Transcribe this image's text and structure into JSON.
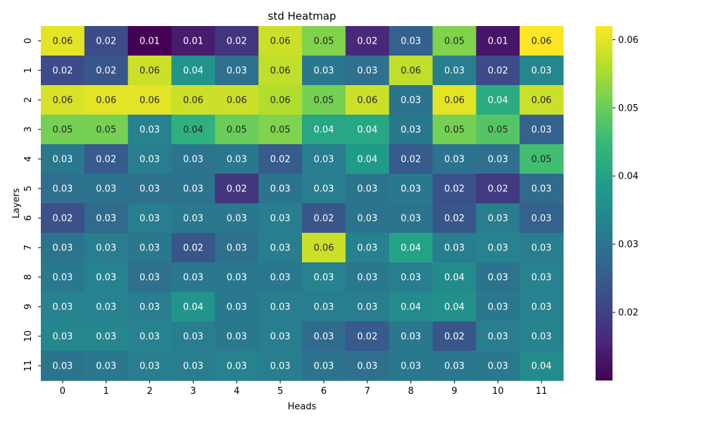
{
  "chart_data": {
    "type": "heatmap",
    "title": "std Heatmap",
    "xlabel": "Heads",
    "ylabel": "Layers",
    "x_categories": [
      "0",
      "1",
      "2",
      "3",
      "4",
      "5",
      "6",
      "7",
      "8",
      "9",
      "10",
      "11"
    ],
    "y_categories": [
      "0",
      "1",
      "2",
      "3",
      "4",
      "5",
      "6",
      "7",
      "8",
      "9",
      "10",
      "11"
    ],
    "values": [
      [
        0.06,
        0.022,
        0.01,
        0.014,
        0.018,
        0.058,
        0.052,
        0.016,
        0.026,
        0.052,
        0.013,
        0.062
      ],
      [
        0.022,
        0.024,
        0.058,
        0.037,
        0.029,
        0.057,
        0.031,
        0.029,
        0.057,
        0.032,
        0.022,
        0.034
      ],
      [
        0.059,
        0.06,
        0.06,
        0.058,
        0.058,
        0.056,
        0.051,
        0.058,
        0.03,
        0.06,
        0.042,
        0.058
      ],
      [
        0.051,
        0.051,
        0.033,
        0.043,
        0.05,
        0.052,
        0.041,
        0.041,
        0.031,
        0.051,
        0.048,
        0.026
      ],
      [
        0.031,
        0.025,
        0.032,
        0.03,
        0.031,
        0.025,
        0.032,
        0.038,
        0.025,
        0.03,
        0.029,
        0.046
      ],
      [
        0.029,
        0.03,
        0.029,
        0.03,
        0.018,
        0.03,
        0.032,
        0.03,
        0.031,
        0.023,
        0.019,
        0.028
      ],
      [
        0.023,
        0.028,
        0.032,
        0.031,
        0.031,
        0.032,
        0.024,
        0.03,
        0.03,
        0.024,
        0.032,
        0.026
      ],
      [
        0.03,
        0.032,
        0.031,
        0.024,
        0.029,
        0.032,
        0.058,
        0.033,
        0.04,
        0.032,
        0.033,
        0.032
      ],
      [
        0.031,
        0.033,
        0.029,
        0.031,
        0.031,
        0.031,
        0.033,
        0.031,
        0.032,
        0.035,
        0.03,
        0.033
      ],
      [
        0.033,
        0.033,
        0.032,
        0.037,
        0.031,
        0.032,
        0.032,
        0.032,
        0.035,
        0.036,
        0.031,
        0.033
      ],
      [
        0.034,
        0.034,
        0.033,
        0.032,
        0.031,
        0.032,
        0.028,
        0.025,
        0.031,
        0.024,
        0.032,
        0.033
      ],
      [
        0.03,
        0.031,
        0.032,
        0.032,
        0.033,
        0.032,
        0.03,
        0.029,
        0.031,
        0.031,
        0.031,
        0.035
      ]
    ],
    "labels": [
      [
        "0.06",
        "0.02",
        "0.01",
        "0.01",
        "0.02",
        "0.06",
        "0.05",
        "0.02",
        "0.03",
        "0.05",
        "0.01",
        "0.06"
      ],
      [
        "0.02",
        "0.02",
        "0.06",
        "0.04",
        "0.03",
        "0.06",
        "0.03",
        "0.03",
        "0.06",
        "0.03",
        "0.02",
        "0.03"
      ],
      [
        "0.06",
        "0.06",
        "0.06",
        "0.06",
        "0.06",
        "0.06",
        "0.05",
        "0.06",
        "0.03",
        "0.06",
        "0.04",
        "0.06"
      ],
      [
        "0.05",
        "0.05",
        "0.03",
        "0.04",
        "0.05",
        "0.05",
        "0.04",
        "0.04",
        "0.03",
        "0.05",
        "0.05",
        "0.03"
      ],
      [
        "0.03",
        "0.02",
        "0.03",
        "0.03",
        "0.03",
        "0.02",
        "0.03",
        "0.04",
        "0.02",
        "0.03",
        "0.03",
        "0.05"
      ],
      [
        "0.03",
        "0.03",
        "0.03",
        "0.03",
        "0.02",
        "0.03",
        "0.03",
        "0.03",
        "0.03",
        "0.02",
        "0.02",
        "0.03"
      ],
      [
        "0.02",
        "0.03",
        "0.03",
        "0.03",
        "0.03",
        "0.03",
        "0.02",
        "0.03",
        "0.03",
        "0.02",
        "0.03",
        "0.03"
      ],
      [
        "0.03",
        "0.03",
        "0.03",
        "0.02",
        "0.03",
        "0.03",
        "0.06",
        "0.03",
        "0.04",
        "0.03",
        "0.03",
        "0.03"
      ],
      [
        "0.03",
        "0.03",
        "0.03",
        "0.03",
        "0.03",
        "0.03",
        "0.03",
        "0.03",
        "0.03",
        "0.04",
        "0.03",
        "0.03"
      ],
      [
        "0.03",
        "0.03",
        "0.03",
        "0.04",
        "0.03",
        "0.03",
        "0.03",
        "0.03",
        "0.04",
        "0.04",
        "0.03",
        "0.03"
      ],
      [
        "0.03",
        "0.03",
        "0.03",
        "0.03",
        "0.03",
        "0.03",
        "0.03",
        "0.02",
        "0.03",
        "0.02",
        "0.03",
        "0.03"
      ],
      [
        "0.03",
        "0.03",
        "0.03",
        "0.03",
        "0.03",
        "0.03",
        "0.03",
        "0.03",
        "0.03",
        "0.03",
        "0.03",
        "0.04"
      ]
    ],
    "colormap": "viridis",
    "vmin": 0.01,
    "vmax": 0.062,
    "colorbar_ticks": [
      0.02,
      0.03,
      0.04,
      0.05,
      0.06
    ],
    "colorbar_tick_labels": [
      "0.02",
      "0.03",
      "0.04",
      "0.05",
      "0.06"
    ],
    "colorbar_position": "right",
    "grid": false
  }
}
